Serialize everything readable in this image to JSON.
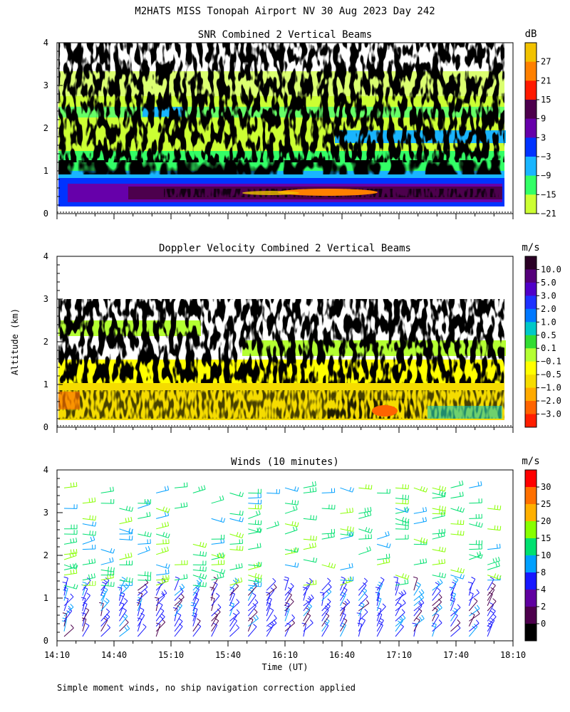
{
  "figure_title": "M2HATS MISS Tonopah Airport NV  30 Aug 2023 Day 242",
  "y_axis_label": "Altitude (km)",
  "x_axis_label": "Time (UT)",
  "footnote": "Simple moment winds, no ship navigation correction applied",
  "chart_data": [
    {
      "type": "heatmap",
      "title": "SNR Combined 2 Vertical Beams",
      "ylabel": "Altitude (km)",
      "ylim": [
        0,
        4
      ],
      "y_ticks": [
        "0",
        "1",
        "2",
        "3",
        "4"
      ],
      "xlim": [
        "14:10",
        "18:10"
      ],
      "colorbar_unit": "dB",
      "colorbar_labels": [
        "27",
        "21",
        "15",
        "9",
        "3",
        "−3",
        "−9",
        "−15",
        "−21"
      ],
      "colorbar_colors": [
        "#f2c200",
        "#ff8000",
        "#ff1a00",
        "#4d004d",
        "#6600aa",
        "#0033ff",
        "#19b5ff",
        "#33ff66",
        "#ccff33"
      ],
      "features": [
        {
          "layer": "strong boundary-layer return",
          "altitude_km": [
            0.1,
            0.75
          ],
          "snr_db_range": [
            3,
            27
          ]
        },
        {
          "layer": "scattered weak returns",
          "altitude_km": [
            0.8,
            3.3
          ],
          "snr_db_range": [
            -21,
            -9
          ]
        }
      ]
    },
    {
      "type": "heatmap",
      "title": "Doppler Velocity Combined 2 Vertical Beams",
      "ylabel": "Altitude (km)",
      "ylim": [
        0,
        4
      ],
      "y_ticks": [
        "0",
        "1",
        "2",
        "3",
        "4"
      ],
      "xlim": [
        "14:10",
        "18:10"
      ],
      "colorbar_unit": "m/s",
      "colorbar_labels": [
        "10.0",
        "5.0",
        "3.0",
        "2.0",
        "1.0",
        "0.5",
        "0.1",
        "−0.1",
        "−0.5",
        "−1.0",
        "−2.0",
        "−3.0"
      ],
      "colorbar_colors": [
        "#2a0025",
        "#55007a",
        "#5000c8",
        "#1e32ff",
        "#0078ff",
        "#00c8c8",
        "#32dc32",
        "#b4ff32",
        "#ffff00",
        "#f5dc00",
        "#ffaa00",
        "#ff6400",
        "#ff1e00"
      ],
      "features": [
        {
          "layer": "boundary layer",
          "altitude_km": [
            0.1,
            1.0
          ],
          "velocity_ms_range": [
            -1.0,
            0.5
          ]
        },
        {
          "layer": "elevated layers",
          "altitude_km": [
            1.0,
            2.6
          ],
          "velocity_ms_range": [
            -0.5,
            0.5
          ]
        }
      ]
    },
    {
      "type": "scatter",
      "title": "Winds (10 minutes)",
      "ylabel": "Altitude (km)",
      "ylim": [
        0,
        4
      ],
      "y_ticks": [
        "0",
        "1",
        "2",
        "3",
        "4"
      ],
      "xlabel": "Time (UT)",
      "x_ticks": [
        "14:10",
        "14:40",
        "15:10",
        "15:40",
        "16:10",
        "16:40",
        "17:10",
        "17:40",
        "18:10"
      ],
      "colorbar_unit": "m/s",
      "colorbar_labels": [
        "30",
        "25",
        "20",
        "15",
        "10",
        "8",
        "4",
        "2",
        "0"
      ],
      "colorbar_colors": [
        "#ff0000",
        "#ff7000",
        "#ffb000",
        "#88ff00",
        "#00e070",
        "#00a0ff",
        "#1818ff",
        "#6000a0",
        "#4d004d",
        "#000000"
      ],
      "profiles_every_minutes": 10,
      "max_altitude_km": 3.6
    }
  ]
}
